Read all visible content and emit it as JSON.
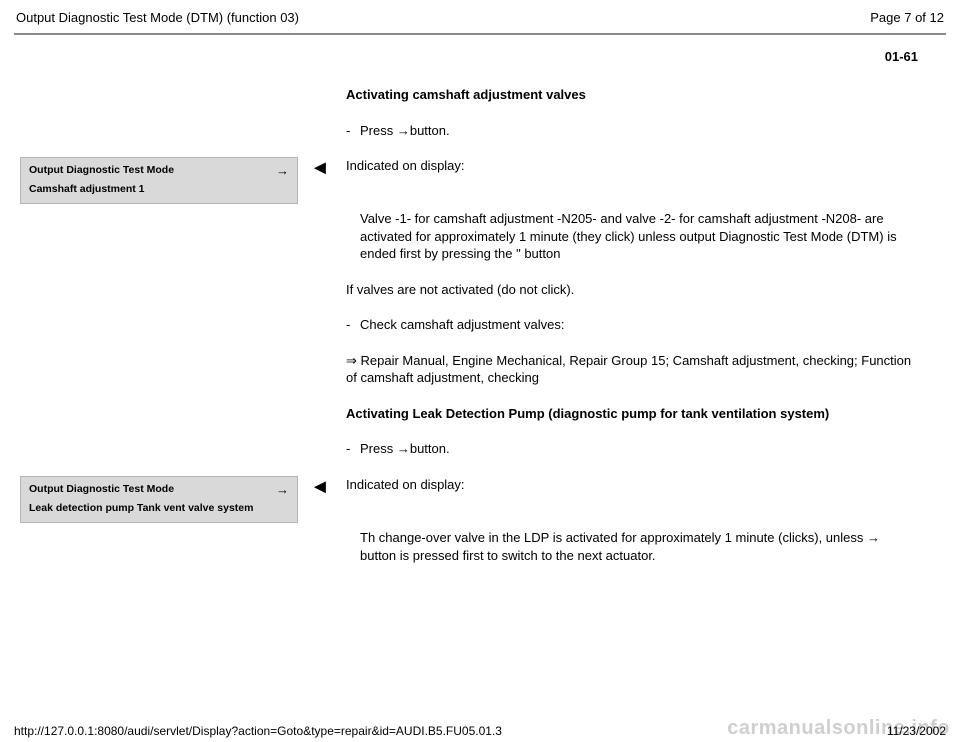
{
  "header": {
    "title": "Output Diagnostic Test Mode (DTM) (function 03)",
    "page_of": "Page 7 of 12"
  },
  "section_number": "01-61",
  "blocks": [
    {
      "left": null,
      "marker": "",
      "body": {
        "type": "heading",
        "text": "Activating camshaft adjustment valves"
      }
    },
    {
      "left": null,
      "marker": "",
      "body": {
        "type": "bullet",
        "text_pre": "Press ",
        "arrow": "→",
        "text_post": "button."
      }
    },
    {
      "left": {
        "title": "Output Diagnostic Test Mode",
        "arrow": "→",
        "sub": "Camshaft adjustment 1"
      },
      "marker": "◄",
      "body": {
        "type": "para",
        "text": "Indicated on display:"
      }
    },
    {
      "left": null,
      "marker": "",
      "body": {
        "type": "para_indent",
        "text": "Valve -1- for camshaft adjustment -N205- and valve -2- for camshaft adjustment -N208- are activated for approximately 1 minute (they click) unless output Diagnostic Test Mode (DTM) is ended first by pressing the \" button"
      }
    },
    {
      "left": null,
      "marker": "",
      "body": {
        "type": "para",
        "text": "If valves are not activated (do not click)."
      }
    },
    {
      "left": null,
      "marker": "",
      "body": {
        "type": "bullet",
        "text_pre": "Check camshaft adjustment valves:",
        "arrow": "",
        "text_post": ""
      }
    },
    {
      "left": null,
      "marker": "",
      "body": {
        "type": "para",
        "text": "⇒ Repair Manual, Engine Mechanical, Repair Group 15; Camshaft adjustment, checking; Function of camshaft adjustment, checking"
      }
    },
    {
      "left": null,
      "marker": "",
      "body": {
        "type": "heading",
        "text": "Activating Leak Detection Pump (diagnostic pump for tank ventilation system)"
      }
    },
    {
      "left": null,
      "marker": "",
      "body": {
        "type": "bullet",
        "text_pre": "Press ",
        "arrow": "→",
        "text_post": "button."
      }
    },
    {
      "left": {
        "title": "Output Diagnostic Test Mode",
        "arrow": "→",
        "sub": "Leak detection pump Tank vent valve system"
      },
      "marker": "◄",
      "body": {
        "type": "para",
        "text": "Indicated on display:"
      }
    },
    {
      "left": null,
      "marker": "",
      "body": {
        "type": "para_indent_arrow",
        "text_pre": "Th change-over valve in the LDP is activated for approximately 1 minute (clicks), unless ",
        "arrow": "→",
        "text_post": " button is pressed first to switch to the next actuator."
      }
    }
  ],
  "footer": {
    "url": "http://127.0.0.1:8080/audi/servlet/Display?action=Goto&type=repair&id=AUDI.B5.FU05.01.3",
    "date": "11/23/2002"
  },
  "watermark": "carmanualsonline.info",
  "style": {
    "bg": "#ffffff",
    "text": "#000000",
    "hr": "#888888",
    "box_bg": "#d9d9d9",
    "box_border": "#b5b5b5",
    "watermark_color": "#cfcfcf"
  }
}
